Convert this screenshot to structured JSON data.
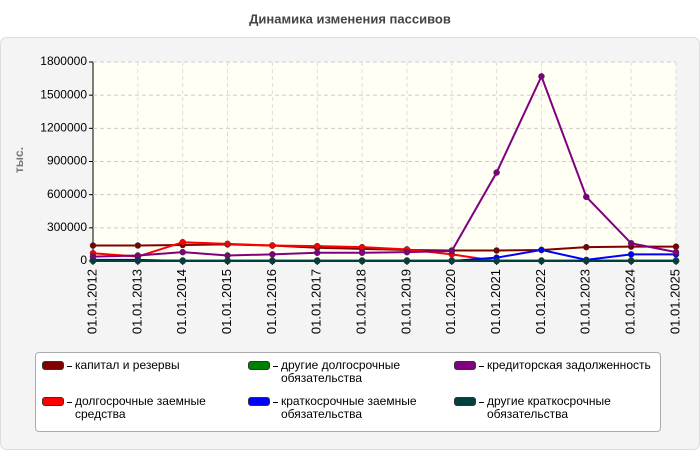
{
  "chart_data": {
    "type": "line",
    "title": "Динамика изменения пассивов",
    "y_label": "тыс.",
    "categories": [
      "01.01.2012",
      "01.01.2013",
      "01.01.2014",
      "01.01.2015",
      "01.01.2016",
      "01.01.2017",
      "01.01.2018",
      "01.01.2019",
      "01.01.2020",
      "01.01.2021",
      "01.01.2022",
      "01.01.2023",
      "01.01.2024",
      "01.01.2025"
    ],
    "ylim": [
      0,
      1800000
    ],
    "yticks": [
      0,
      300000,
      600000,
      900000,
      1200000,
      1500000,
      1800000
    ],
    "grid": true,
    "series": [
      {
        "name": "капитал и резервы",
        "color": "#800000",
        "values": [
          140000,
          140000,
          145000,
          150000,
          140000,
          120000,
          110000,
          100000,
          95000,
          95000,
          100000,
          125000,
          130000,
          130000
        ]
      },
      {
        "name": "долгосрочные заемные средства",
        "color": "#ff0000",
        "values": [
          70000,
          40000,
          170000,
          155000,
          140000,
          135000,
          125000,
          105000,
          60000,
          0,
          0,
          0,
          0,
          0
        ]
      },
      {
        "name": "другие долгосрочные обязательства",
        "color": "#008000",
        "values": [
          5000,
          5000,
          5000,
          5000,
          5000,
          5000,
          5000,
          5000,
          5000,
          5000,
          5000,
          5000,
          5000,
          5000
        ]
      },
      {
        "name": "краткосрочные заемные обязательства",
        "color": "#0000ff",
        "values": [
          10000,
          10000,
          0,
          0,
          0,
          0,
          0,
          0,
          0,
          30000,
          100000,
          10000,
          60000,
          60000
        ]
      },
      {
        "name": "кредиторская задолженность",
        "color": "#800080",
        "values": [
          40000,
          50000,
          80000,
          50000,
          60000,
          75000,
          75000,
          80000,
          90000,
          800000,
          1670000,
          580000,
          160000,
          80000
        ]
      },
      {
        "name": "другие краткосрочные обязательства",
        "color": "#004040",
        "values": [
          0,
          0,
          0,
          0,
          0,
          0,
          0,
          0,
          0,
          0,
          0,
          0,
          0,
          0
        ]
      }
    ]
  }
}
